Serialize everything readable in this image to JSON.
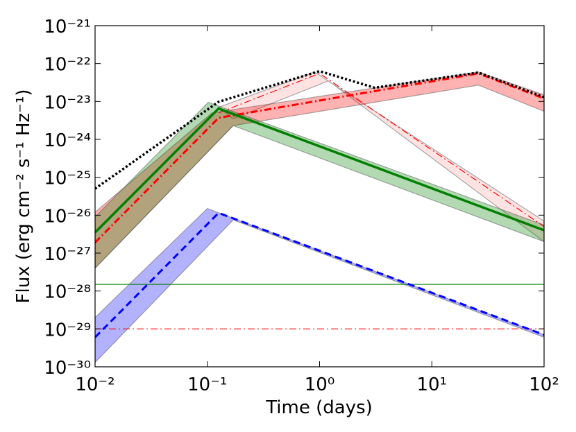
{
  "chart_data": {
    "type": "line",
    "xlabel": "Time (days)",
    "ylabel": "Flux (erg cm⁻² s⁻¹ Hz⁻¹)",
    "xscale": "log",
    "yscale": "log",
    "xlim": [
      0.01,
      100
    ],
    "ylim": [
      1e-30,
      1e-21
    ],
    "xticks": [
      {
        "value": 0.01,
        "label": "10⁻²"
      },
      {
        "value": 0.1,
        "label": "10⁻¹"
      },
      {
        "value": 1,
        "label": "10⁰"
      },
      {
        "value": 10,
        "label": "10¹"
      },
      {
        "value": 100,
        "label": "10²"
      }
    ],
    "yticks": [
      {
        "value": 1e-30,
        "label": "10⁻³⁰"
      },
      {
        "value": 1e-29,
        "label": "10⁻²⁹"
      },
      {
        "value": 1e-28,
        "label": "10⁻²⁸"
      },
      {
        "value": 1e-27,
        "label": "10⁻²⁷"
      },
      {
        "value": 1e-26,
        "label": "10⁻²⁶"
      },
      {
        "value": 1e-25,
        "label": "10⁻²⁵"
      },
      {
        "value": 1e-24,
        "label": "10⁻²⁴"
      },
      {
        "value": 1e-23,
        "label": "10⁻²³"
      },
      {
        "value": 1e-22,
        "label": "10⁻²²"
      },
      {
        "value": 1e-21,
        "label": "10⁻²¹"
      }
    ],
    "bands": [
      {
        "color": "#ffb0b0",
        "opacity": 0.35,
        "upper": {
          "x": [
            0.126,
            0.9,
            100
          ],
          "values": [
            7e-24,
            6e-23,
            7e-27
          ]
        },
        "lower": {
          "x": [
            0.17,
            1.2,
            100
          ],
          "values": [
            3.5e-24,
            3.5e-23,
            2e-27
          ]
        }
      },
      {
        "color": "#ff0000",
        "opacity": 0.3,
        "upper": {
          "x": [
            0.01,
            0.11,
            26,
            100
          ],
          "values": [
            1.2e-26,
            5e-24,
            6e-23,
            1.5e-23
          ]
        },
        "lower": {
          "x": [
            0.01,
            0.17,
            26,
            100
          ],
          "values": [
            4e-28,
            2.3e-24,
            2.7e-23,
            5.5e-24
          ]
        }
      },
      {
        "color": "#008000",
        "opacity": 0.3,
        "upper": {
          "x": [
            0.01,
            0.102,
            100
          ],
          "values": [
            9e-27,
            9.5e-24,
            5.5e-27
          ]
        },
        "lower": {
          "x": [
            0.01,
            0.17,
            100
          ],
          "values": [
            4e-28,
            2.3e-24,
            2e-27
          ]
        }
      },
      {
        "color": "#0000ff",
        "opacity": 0.3,
        "upper": {
          "x": [
            0.01,
            0.1,
            100
          ],
          "values": [
            2e-29,
            1.5e-26,
            7e-30
          ]
        },
        "lower": {
          "x": [
            0.01,
            0.17,
            100
          ],
          "values": [
            1.3e-30,
            7.5e-27,
            6e-30
          ]
        }
      }
    ],
    "series": [
      {
        "color": "#ff0000",
        "style": "dashdot",
        "width": 1.2,
        "x": [
          0.126,
          1,
          100
        ],
        "values": [
          5e-24,
          5.5e-23,
          5e-27
        ]
      },
      {
        "color": "#ff0000",
        "style": "dashdot",
        "width": 3,
        "x": [
          0.01,
          0.126,
          26,
          100
        ],
        "values": [
          1.9e-27,
          3.7e-24,
          5.5e-23,
          1.2e-23
        ]
      },
      {
        "color": "#007f00",
        "style": "solid",
        "width": 3.5,
        "x": [
          0.01,
          0.126,
          100
        ],
        "values": [
          3.5e-27,
          6.5e-24,
          4e-27
        ]
      },
      {
        "color": "#0000ff",
        "style": "dashed",
        "width": 3,
        "x": [
          0.01,
          0.126,
          100
        ],
        "values": [
          6e-30,
          1.15e-26,
          7e-30
        ]
      },
      {
        "color": "#000000",
        "style": "dotted",
        "width": 3.5,
        "x": [
          0.01,
          0.126,
          1,
          3.1,
          26,
          100
        ],
        "values": [
          5e-26,
          9.8e-24,
          6.3e-23,
          2.3e-23,
          5.8e-23,
          1.3e-23
        ]
      }
    ],
    "hlines": [
      {
        "value": 1.5e-28,
        "color": "#008000",
        "style": "solid",
        "width": 1.2
      },
      {
        "value": 1e-29,
        "color": "#ff0000",
        "style": "dashdot",
        "width": 1.2
      }
    ]
  }
}
